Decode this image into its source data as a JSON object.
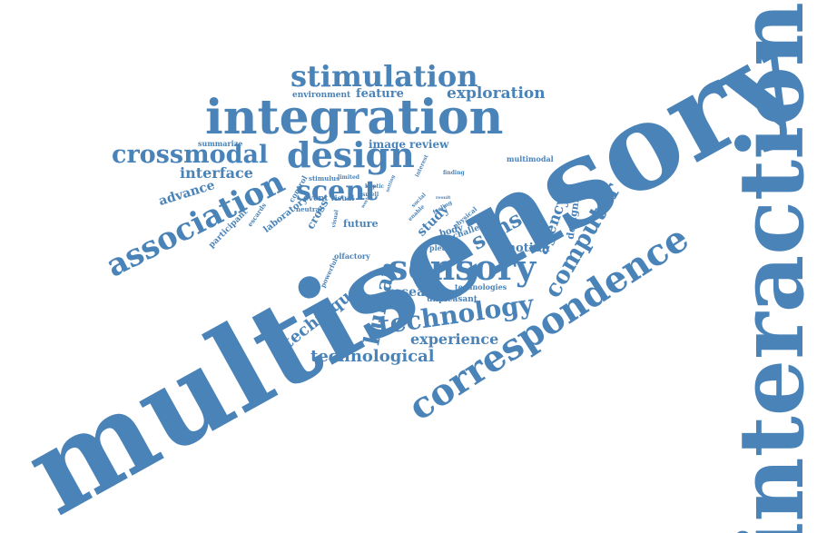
{
  "word_cloud": {
    "color": "#4a83b8",
    "words": [
      "multisensory",
      "interaction",
      "sensory",
      "integration",
      "correspondence",
      "stimulation",
      "crossmodal",
      "design",
      "association",
      "technology",
      "computer",
      "scent",
      "exploration",
      "technological",
      "experience",
      "research",
      "sense",
      "human",
      "technique",
      "agency",
      "interface",
      "advance",
      "designing",
      "emotion",
      "feature",
      "environment",
      "image",
      "review",
      "summarize",
      "multimodal",
      "participant",
      "laboratory",
      "study",
      "future",
      "cross",
      "visual",
      "event",
      "stimulus",
      "control",
      "olfactory",
      "unpleasant",
      "pleasant",
      "technologies",
      "challenge",
      "body",
      "physical",
      "escards",
      "neutral",
      "powerful",
      "haptic",
      "finding",
      "interest",
      "limited",
      "smell",
      "world",
      "result",
      "setting",
      "enable",
      "feeling",
      "social",
      "visual"
    ]
  }
}
